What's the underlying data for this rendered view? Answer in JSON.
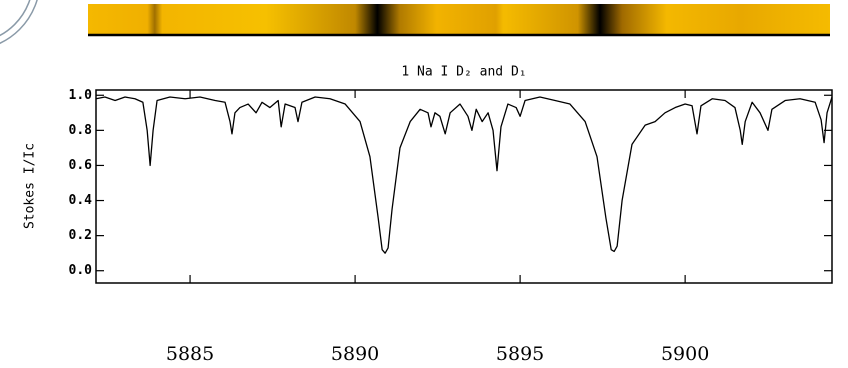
{
  "chart_data": {
    "type": "line",
    "title": "1 Na I D₂ and D₁",
    "y_label": "Stokes I/Ic",
    "color": "#000000",
    "x": [
      5882.15,
      5882.42,
      5882.73,
      5883.03,
      5883.33,
      5883.57,
      5883.7,
      5883.79,
      5883.88,
      5884.0,
      5884.39,
      5884.85,
      5885.3,
      5885.76,
      5886.06,
      5886.21,
      5886.27,
      5886.36,
      5886.51,
      5886.76,
      5887.0,
      5887.18,
      5887.42,
      5887.67,
      5887.76,
      5887.88,
      5888.18,
      5888.27,
      5888.39,
      5888.79,
      5889.24,
      5889.7,
      5890.15,
      5890.45,
      5890.7,
      5890.82,
      5890.91,
      5891.0,
      5891.12,
      5891.36,
      5891.67,
      5891.97,
      5892.21,
      5892.3,
      5892.42,
      5892.57,
      5892.73,
      5892.88,
      5893.18,
      5893.42,
      5893.54,
      5893.67,
      5893.85,
      5894.03,
      5894.18,
      5894.3,
      5894.42,
      5894.63,
      5894.88,
      5895.0,
      5895.15,
      5895.6,
      5896.06,
      5896.51,
      5896.97,
      5897.33,
      5897.6,
      5897.76,
      5897.85,
      5897.94,
      5898.09,
      5898.39,
      5898.79,
      5899.09,
      5899.39,
      5899.7,
      5900.0,
      5900.21,
      5900.36,
      5900.48,
      5900.82,
      5901.21,
      5901.51,
      5901.67,
      5901.73,
      5901.82,
      5902.03,
      5902.27,
      5902.51,
      5902.63,
      5903.03,
      5903.48,
      5903.94,
      5904.12,
      5904.21,
      5904.3,
      5904.45
    ],
    "values": [
      0.98,
      0.99,
      0.97,
      0.99,
      0.98,
      0.96,
      0.8,
      0.6,
      0.8,
      0.97,
      0.99,
      0.98,
      0.99,
      0.97,
      0.96,
      0.85,
      0.78,
      0.9,
      0.93,
      0.95,
      0.9,
      0.96,
      0.93,
      0.97,
      0.82,
      0.95,
      0.93,
      0.85,
      0.96,
      0.99,
      0.98,
      0.95,
      0.85,
      0.65,
      0.3,
      0.12,
      0.1,
      0.13,
      0.35,
      0.7,
      0.85,
      0.92,
      0.9,
      0.82,
      0.9,
      0.88,
      0.78,
      0.9,
      0.95,
      0.88,
      0.8,
      0.92,
      0.85,
      0.9,
      0.8,
      0.57,
      0.82,
      0.95,
      0.93,
      0.88,
      0.97,
      0.99,
      0.97,
      0.95,
      0.85,
      0.65,
      0.3,
      0.12,
      0.11,
      0.14,
      0.4,
      0.72,
      0.83,
      0.85,
      0.9,
      0.93,
      0.95,
      0.94,
      0.78,
      0.94,
      0.98,
      0.97,
      0.93,
      0.8,
      0.72,
      0.85,
      0.96,
      0.9,
      0.8,
      0.92,
      0.97,
      0.98,
      0.96,
      0.86,
      0.73,
      0.9,
      0.99
    ],
    "xlim": [
      5882.15,
      5904.45
    ],
    "xticks": [
      5885,
      5890,
      5895,
      5900
    ],
    "ylim": [
      -0.07,
      1.03
    ],
    "yticks": [
      {
        "value": 0,
        "label": "0.0"
      },
      0.2,
      0.4,
      0.6,
      0.8,
      {
        "value": 1,
        "label": "1.0"
      }
    ]
  }
}
